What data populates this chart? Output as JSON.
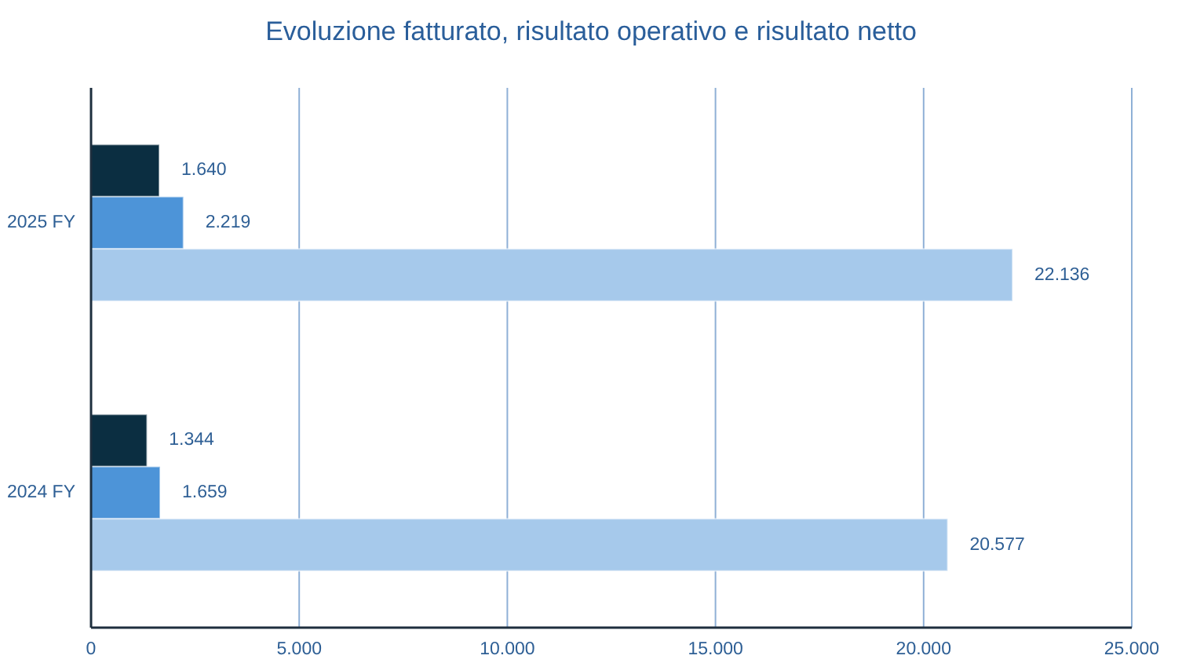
{
  "chart_data": {
    "type": "bar",
    "orientation": "horizontal",
    "title": "Evoluzione fatturato, risultato operativo e risultato netto",
    "categories": [
      "2025 FY",
      "2024 FY"
    ],
    "series": [
      {
        "color": "#0b2e41",
        "values": [
          1640,
          1344
        ],
        "value_labels": [
          "1.640",
          "1.344"
        ]
      },
      {
        "color": "#4d94d8",
        "values": [
          2219,
          1659
        ],
        "value_labels": [
          "2.219",
          "1.659"
        ]
      },
      {
        "color": "#a6c9eb",
        "values": [
          22136,
          20577
        ],
        "value_labels": [
          "22.136",
          "20.577"
        ]
      }
    ],
    "xlim": [
      0,
      25000
    ],
    "xticks": [
      0,
      {
        "value": 5000,
        "label": "5.000"
      },
      {
        "value": 10000,
        "label": "10.000"
      },
      {
        "value": 15000,
        "label": "15.000"
      },
      {
        "value": 20000,
        "label": "20.000"
      },
      {
        "value": 25000,
        "label": "25.000"
      }
    ],
    "grid": "x"
  }
}
